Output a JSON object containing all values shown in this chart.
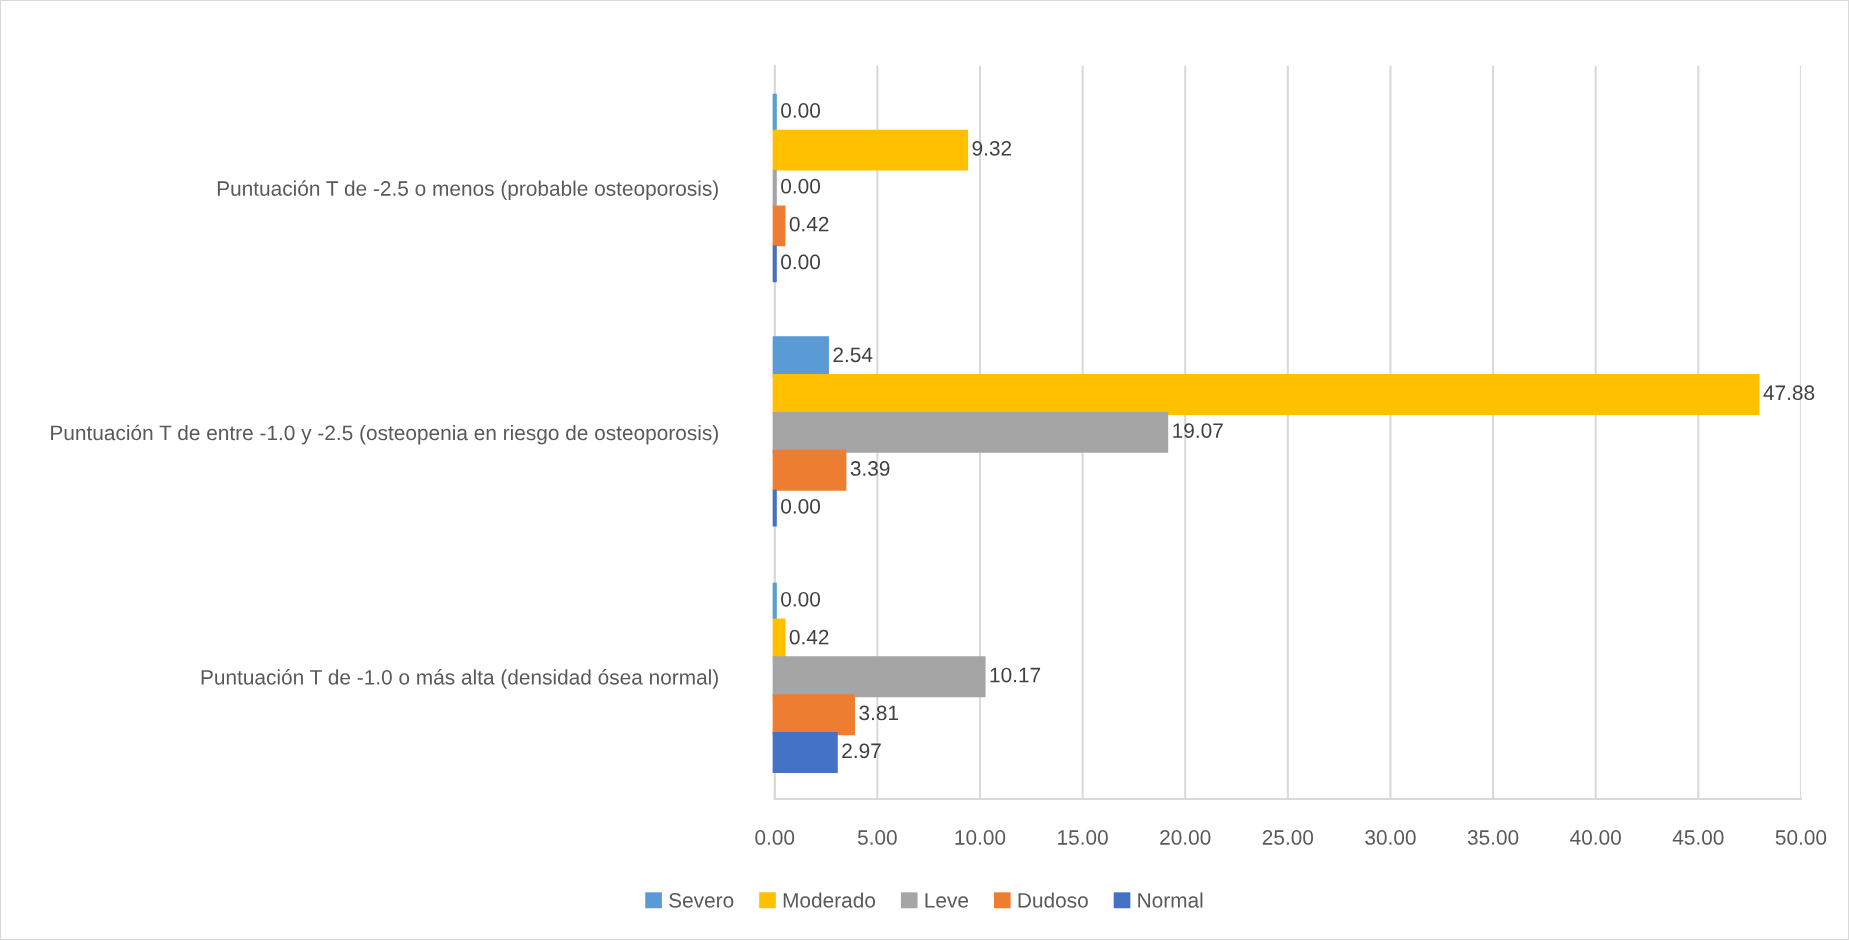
{
  "chart_data": {
    "type": "bar",
    "orientation": "horizontal",
    "categories": [
      "Puntuación T de -2.5 o menos (probable osteoporosis)",
      "Puntuación T de entre -1.0 y -2.5 (osteopenia en riesgo de osteoporosis)",
      "Puntuación T de -1.0 o más alta (densidad ósea normal)"
    ],
    "series": [
      {
        "name": "Severo",
        "color": "#5b9bd5",
        "values": [
          0,
          2.54,
          0
        ],
        "value_labels": [
          "0.00",
          "2.54",
          "0.00"
        ]
      },
      {
        "name": "Moderado",
        "color": "#ffc000",
        "values": [
          9.32,
          47.88,
          0.42
        ],
        "value_labels": [
          "9.32",
          "47.88",
          "0.42"
        ]
      },
      {
        "name": "Leve",
        "color": "#a5a5a5",
        "values": [
          0,
          19.07,
          10.17
        ],
        "value_labels": [
          "0.00",
          "19.07",
          "10.17"
        ]
      },
      {
        "name": "Dudoso",
        "color": "#ed7d31",
        "values": [
          0.42,
          3.39,
          3.81
        ],
        "value_labels": [
          "0.42",
          "3.39",
          "3.81"
        ]
      },
      {
        "name": "Normal",
        "color": "#4472c4",
        "values": [
          0,
          0,
          2.97
        ],
        "value_labels": [
          "0.00",
          "0.00",
          "2.97"
        ]
      }
    ],
    "xlim": [
      0,
      50
    ],
    "xticks": [
      {
        "value": 0,
        "label": "0.00"
      },
      {
        "value": 5,
        "label": "5.00"
      },
      {
        "value": 10,
        "label": "10.00"
      },
      {
        "value": 15,
        "label": "15.00"
      },
      {
        "value": 20,
        "label": "20.00"
      },
      {
        "value": 25,
        "label": "25.00"
      },
      {
        "value": 30,
        "label": "30.00"
      },
      {
        "value": 35,
        "label": "35.00"
      },
      {
        "value": 40,
        "label": "40.00"
      },
      {
        "value": 45,
        "label": "45.00"
      },
      {
        "value": 50,
        "label": "50.00"
      }
    ],
    "grid": "x",
    "legend": "bottom"
  }
}
